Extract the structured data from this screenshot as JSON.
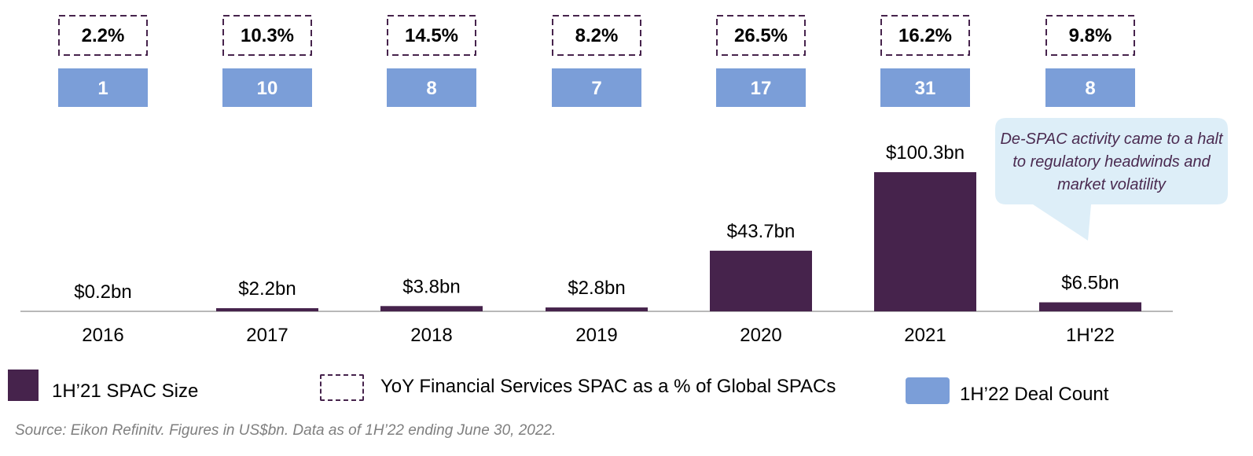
{
  "colors": {
    "bar": "#46234c",
    "count_box": "#7b9ed8",
    "pct_border": "#46234c",
    "callout_fill": "#ddeef8",
    "axis": "#b8b8b8",
    "source_text": "#7f7f7f"
  },
  "chart_data": {
    "type": "bar",
    "categories": [
      "2016",
      "2017",
      "2018",
      "2019",
      "2020",
      "2021",
      "1H'22"
    ],
    "series": [
      {
        "name": "1H’21 SPAC Size",
        "values": [
          0.2,
          2.2,
          3.8,
          2.8,
          43.7,
          100.3,
          6.5
        ],
        "labels": [
          "$0.2bn",
          "$2.2bn",
          "$3.8bn",
          "$2.8bn",
          "$43.7bn",
          "$100.3bn",
          "$6.5bn"
        ]
      }
    ],
    "yoy_pct": [
      "2.2%",
      "10.3%",
      "14.5%",
      "8.2%",
      "26.5%",
      "16.2%",
      "9.8%"
    ],
    "deal_counts": [
      1,
      10,
      8,
      7,
      17,
      31,
      8
    ],
    "ylim": [
      0,
      100.3
    ],
    "grid": false,
    "legend_position": "bottom"
  },
  "legend": {
    "bar_label": "1H’21 SPAC Size",
    "pct_label": "YoY Financial Services SPAC as a % of Global SPACs",
    "count_label": "1H’22 Deal Count"
  },
  "callout": {
    "text": "De-SPAC activity came to a halt to regulatory headwinds and market volatility"
  },
  "source": "Source: Eikon Refinitv. Figures in US$bn. Data as of 1H’22 ending June 30, 2022."
}
